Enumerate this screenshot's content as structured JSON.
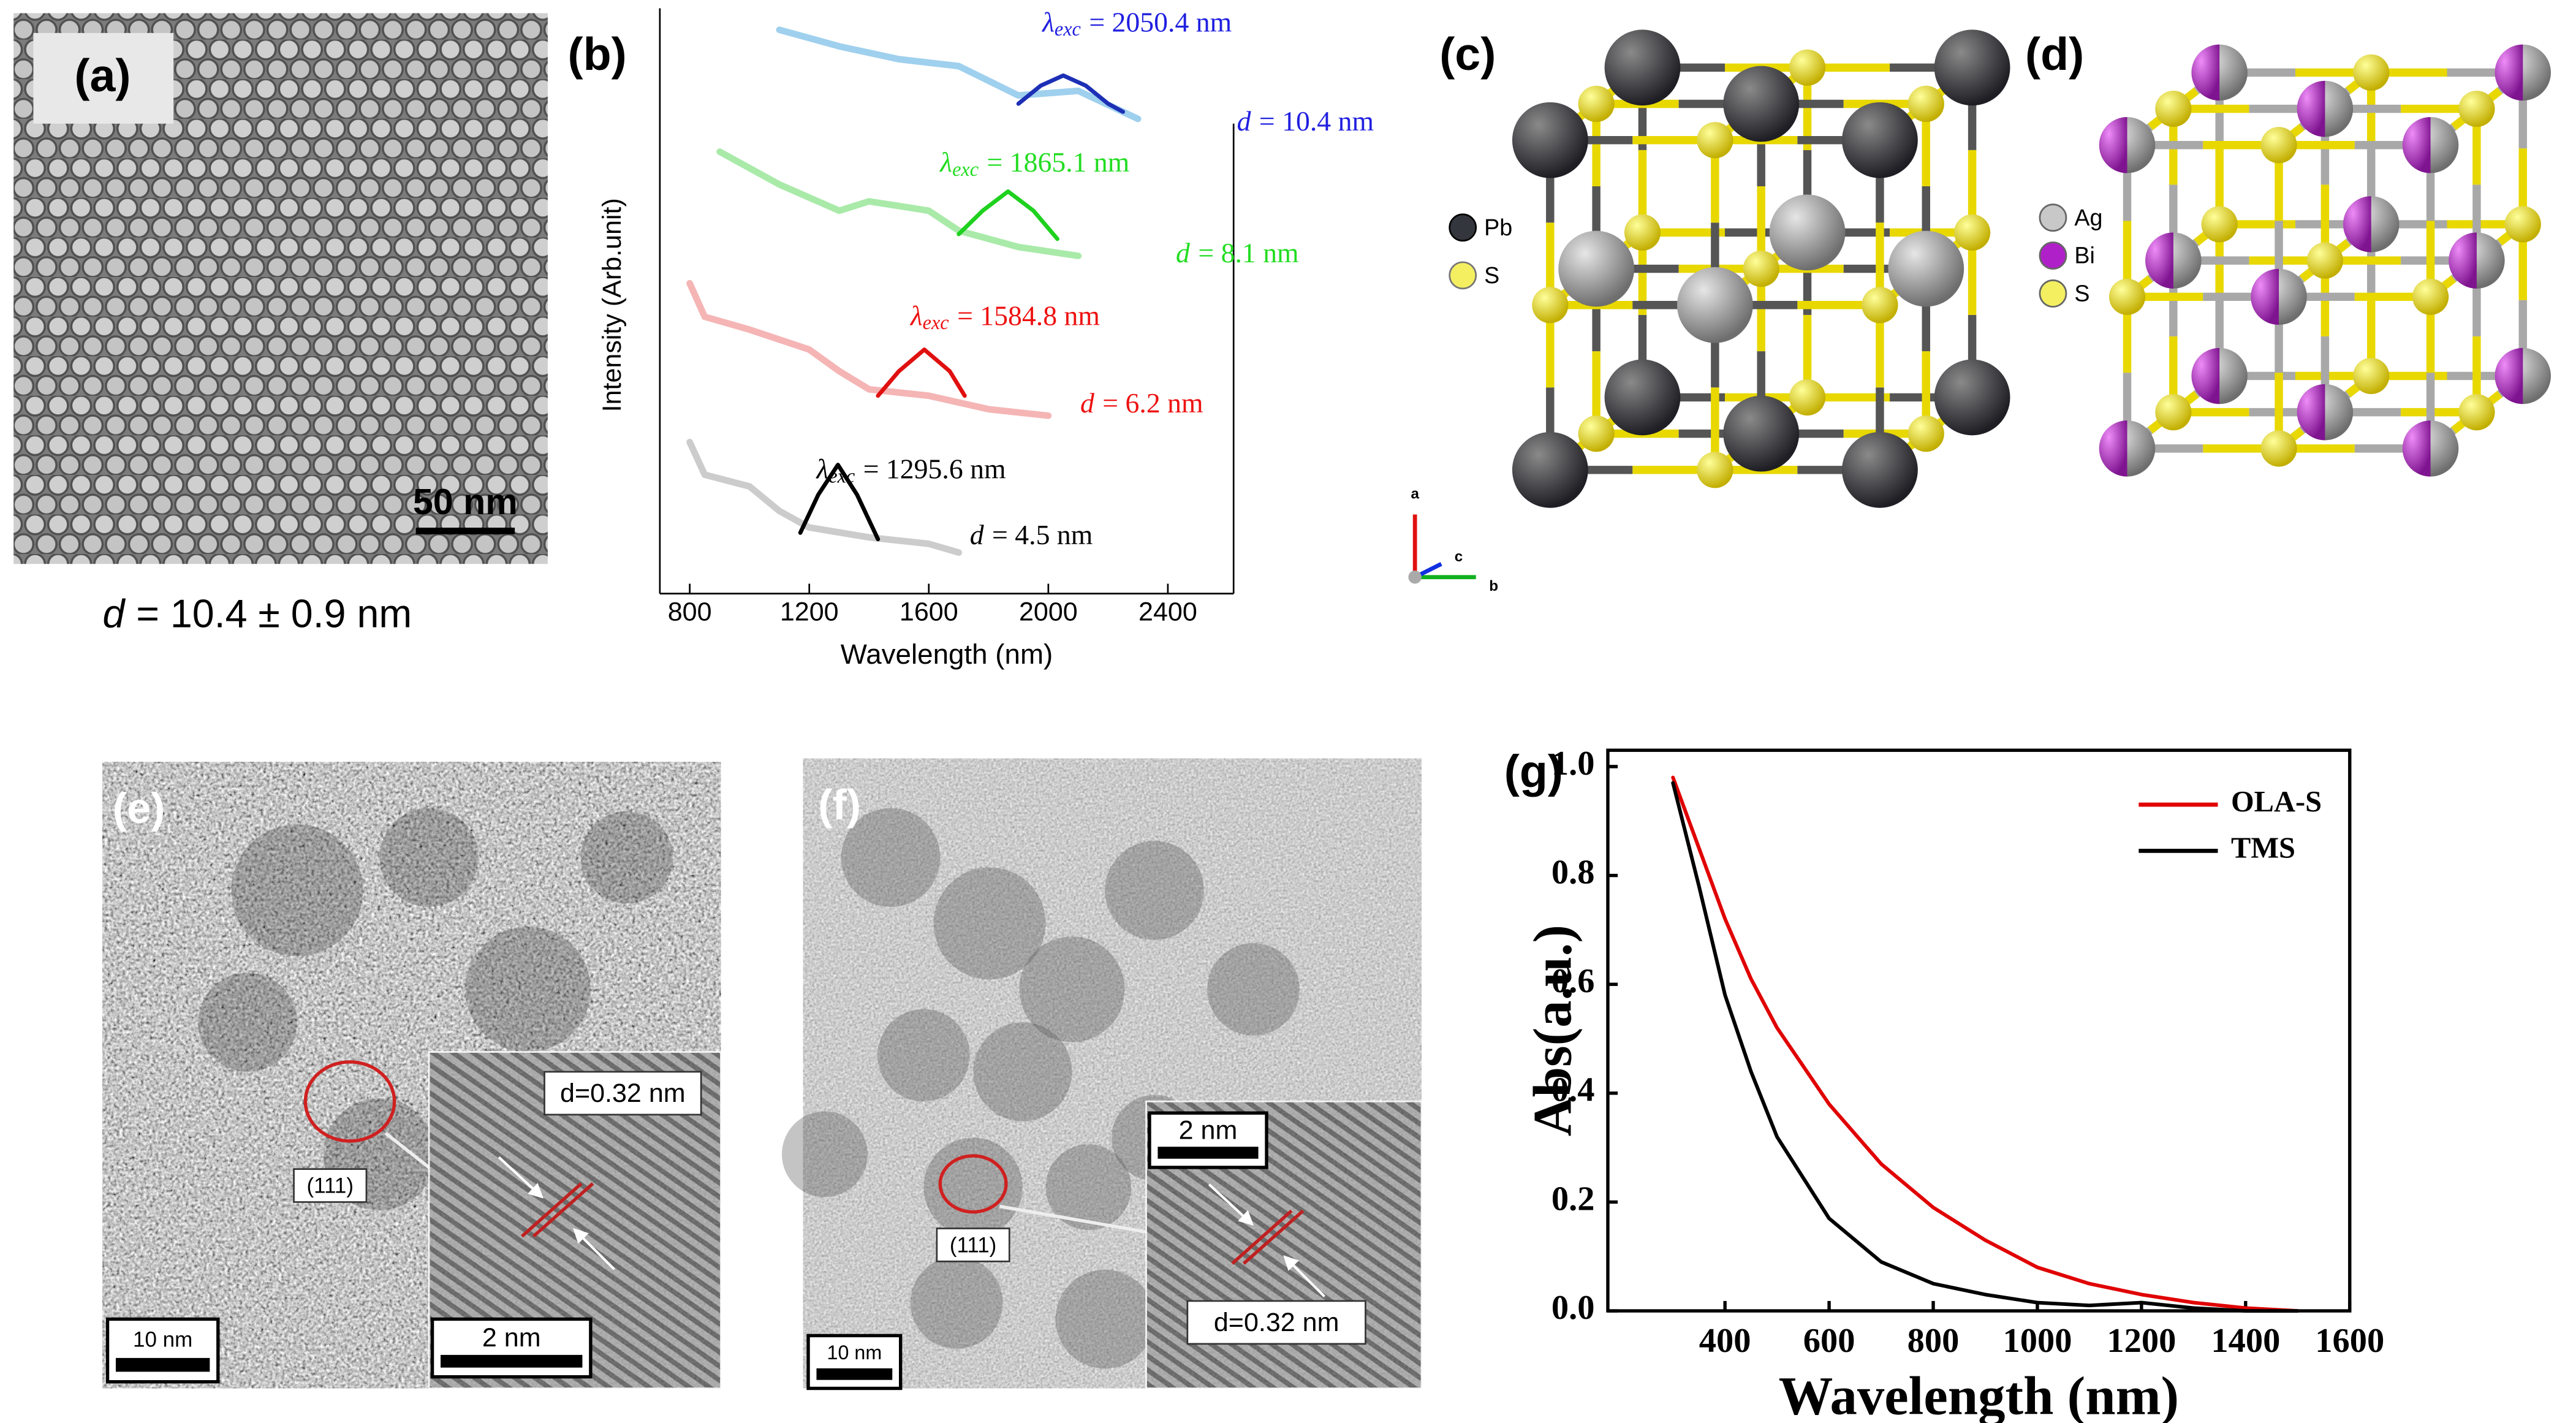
{
  "panels": {
    "a": {
      "label": "(a)",
      "scale_bar": "50 nm",
      "caption": {
        "symbol": "d",
        "text": "= 10.4 ± 0.9 nm"
      }
    },
    "c": {
      "label": "(c)",
      "legend": [
        "Pb",
        "S"
      ],
      "axes": [
        "a",
        "c",
        "b"
      ]
    },
    "d": {
      "label": "(d)",
      "legend": [
        "Ag",
        "Bi",
        "S"
      ]
    },
    "e": {
      "label": "(e)",
      "spacing": "d=0.32 nm",
      "plane": "(111)",
      "scale_bar": "10 nm",
      "inset_scale_bar": "2 nm"
    },
    "f": {
      "label": "(f)",
      "spacing": "d=0.32 nm",
      "plane": "(111)",
      "scale_bar": "10 nm",
      "inset_scale_bar": "2 nm"
    }
  },
  "chart_data": [
    {
      "type": "line",
      "panel_label": "(b)",
      "xlabel": "Wavelength (nm)",
      "ylabel": "Intensity (Arb.unit)",
      "xlim": [
        700,
        2620
      ],
      "xticks": [
        800,
        1200,
        1600,
        2000,
        2400
      ],
      "ylim": [
        0,
        100
      ],
      "series": [
        {
          "color": "#9fd0ee",
          "faded": true,
          "x": [
            1100,
            1300,
            1500,
            1700,
            1900,
            2100,
            2300
          ],
          "values": [
            96.3,
            93.5,
            91.3,
            90.1,
            85.1,
            85.9,
            81.1
          ]
        },
        {
          "color": "#1c2fb5",
          "x": [
            1900,
            1975,
            2050,
            2125,
            2200,
            2250
          ],
          "values": [
            83.7,
            86.8,
            88.5,
            86.8,
            83.7,
            82.3
          ]
        },
        {
          "color": "#a9eaa9",
          "faded": true,
          "x": [
            900,
            1100,
            1300,
            1400,
            1600,
            1700,
            1900,
            2100
          ],
          "values": [
            75.5,
            69.9,
            65.4,
            67.0,
            65.4,
            62.0,
            59.2,
            57.7
          ]
        },
        {
          "color": "#1ed11e",
          "x": [
            1700,
            1780,
            1865,
            1950,
            2030
          ],
          "values": [
            61.4,
            65.4,
            68.7,
            65.4,
            60.6
          ]
        },
        {
          "color": "#f5b5b5",
          "faded": true,
          "x": [
            800,
            850,
            1000,
            1200,
            1300,
            1400,
            1600,
            1800,
            2000
          ],
          "values": [
            53.0,
            47.3,
            45.1,
            41.7,
            38.0,
            34.9,
            33.8,
            31.5,
            30.4
          ]
        },
        {
          "color": "#e01010",
          "x": [
            1430,
            1500,
            1585,
            1670,
            1720
          ],
          "values": [
            33.8,
            38.0,
            41.7,
            38.0,
            33.8
          ]
        },
        {
          "color": "#cccccc",
          "faded": true,
          "x": [
            800,
            850,
            1000,
            1100,
            1200,
            1400,
            1600,
            1700
          ],
          "values": [
            25.9,
            20.3,
            18.3,
            14.1,
            11.3,
            9.6,
            8.5,
            7.0
          ]
        },
        {
          "color": "#000000",
          "x": [
            1170,
            1230,
            1296,
            1360,
            1430
          ],
          "values": [
            10.4,
            16.9,
            22.0,
            16.9,
            9.3
          ]
        }
      ],
      "annotations": [
        {
          "symbol": "λ",
          "subscript": "exc",
          "text": "= 2050.4 nm",
          "color": "#2020e0"
        },
        {
          "symbol": "d",
          "text": "= 10.4 nm",
          "color": "#2020e0"
        },
        {
          "symbol": "λ",
          "subscript": "exc",
          "text": "= 1865.1 nm",
          "color": "#22dd22"
        },
        {
          "symbol": "d",
          "text": "= 8.1 nm",
          "color": "#22dd22"
        },
        {
          "symbol": "λ",
          "subscript": "exc",
          "text": "= 1584.8 nm",
          "color": "#ee1111"
        },
        {
          "symbol": "d",
          "text": "= 6.2 nm",
          "color": "#ee1111"
        },
        {
          "symbol": "λ",
          "subscript": "exc",
          "text": "= 1295.6 nm",
          "color": "#000000"
        },
        {
          "symbol": "d",
          "text": "= 4.5 nm",
          "color": "#000000"
        }
      ]
    },
    {
      "type": "line",
      "panel_label": "(g)",
      "xlabel": "Wavelength (nm)",
      "ylabel": "Abs(a.u.)",
      "xlim": [
        175,
        1600
      ],
      "xticks": [
        400,
        600,
        800,
        1000,
        1200,
        1400,
        1600
      ],
      "ylim": [
        0,
        1.03
      ],
      "yticks": [
        {
          "value": 0,
          "label": "0.0"
        },
        {
          "value": 0.2,
          "label": "0.2"
        },
        {
          "value": 0.4,
          "label": "0.4"
        },
        {
          "value": 0.6,
          "label": "0.6"
        },
        {
          "value": 0.8,
          "label": "0.8"
        },
        {
          "value": 1,
          "label": "1.0"
        }
      ],
      "legend": "upper right",
      "x": [
        300,
        350,
        400,
        450,
        500,
        600,
        700,
        800,
        900,
        1000,
        1100,
        1200,
        1300,
        1400,
        1500
      ],
      "series": [
        {
          "name": "OLA-S",
          "color": "#e00000",
          "values": [
            0.98,
            0.85,
            0.72,
            0.61,
            0.52,
            0.38,
            0.27,
            0.19,
            0.13,
            0.08,
            0.05,
            0.03,
            0.015,
            0.005,
            0.0
          ]
        },
        {
          "name": "TMS",
          "color": "#000000",
          "values": [
            0.97,
            0.78,
            0.58,
            0.44,
            0.32,
            0.17,
            0.09,
            0.05,
            0.03,
            0.015,
            0.01,
            0.015,
            0.005,
            0.0,
            0.0
          ]
        }
      ]
    }
  ]
}
